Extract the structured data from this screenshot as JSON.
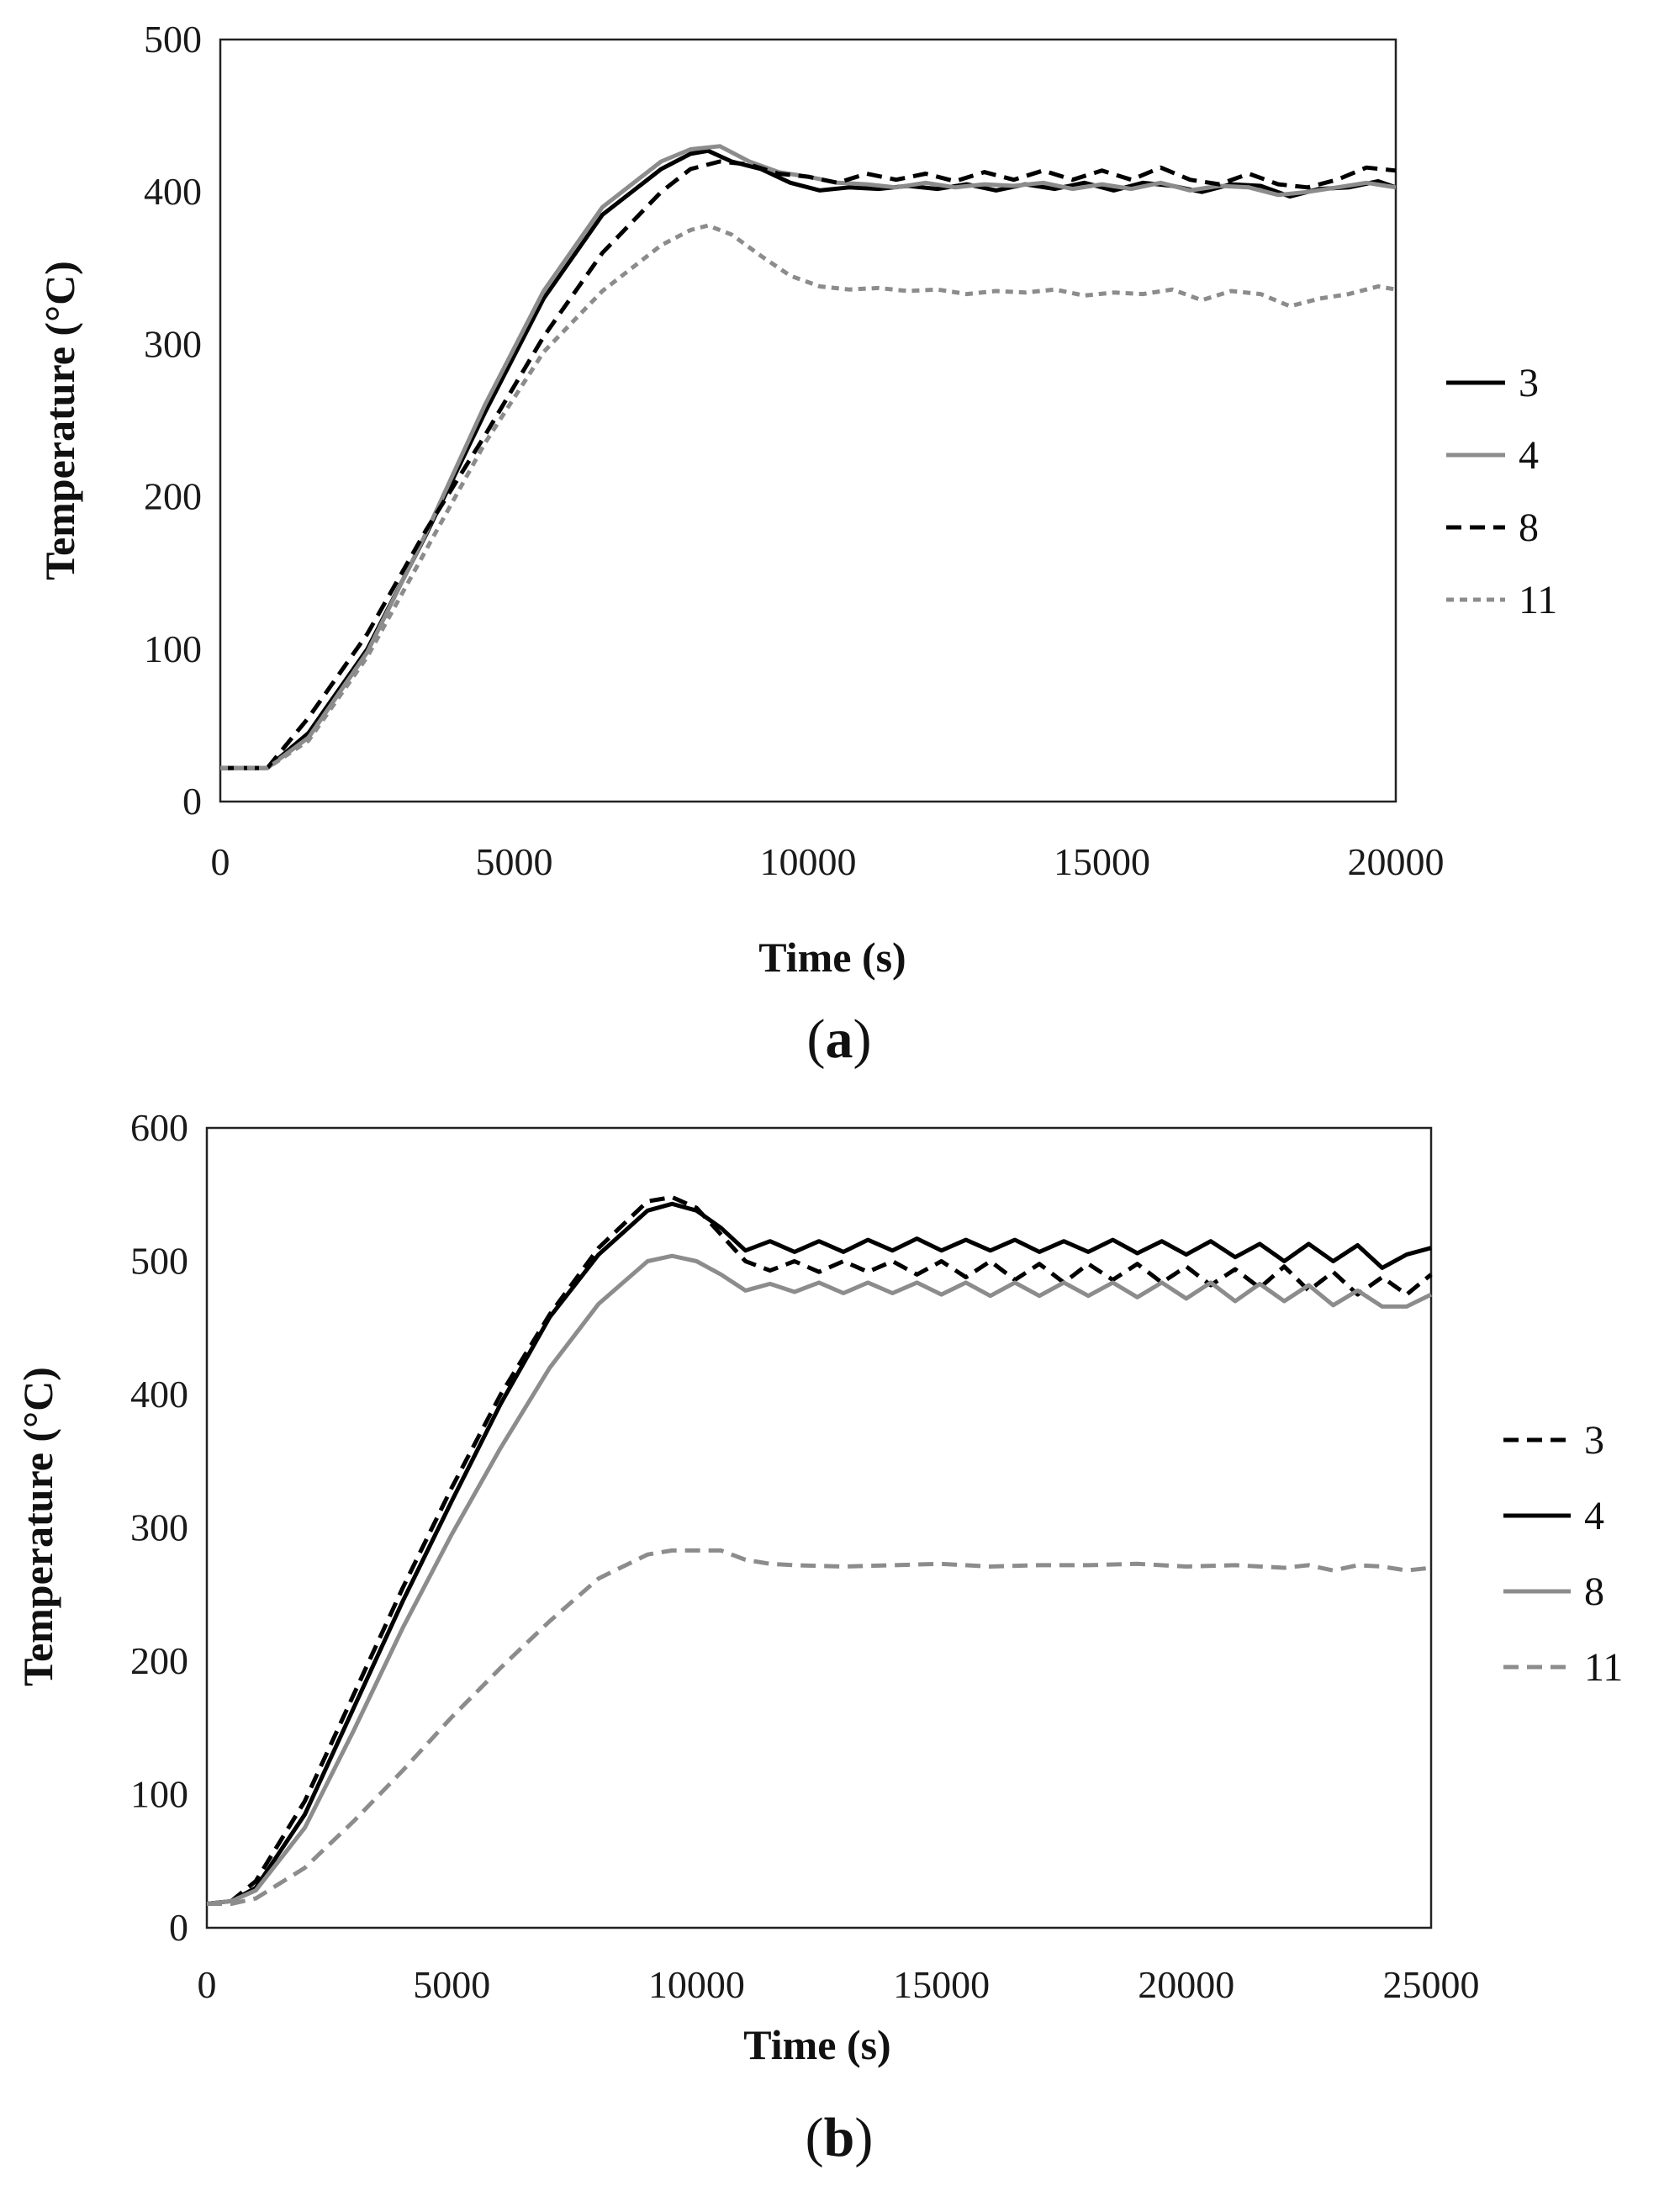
{
  "chart_data": [
    {
      "type": "line",
      "panel_label": "a",
      "xlabel": "Time (s)",
      "ylabel": "Temperature (°C)",
      "xlim": [
        0,
        20000
      ],
      "ylim": [
        0,
        500
      ],
      "xticks": [
        0,
        5000,
        10000,
        15000,
        20000
      ],
      "yticks": [
        0,
        100,
        200,
        300,
        400,
        500
      ],
      "legend_position": "right",
      "series": [
        {
          "name": "3",
          "color": "#000000",
          "dash": "solid",
          "x": [
            0,
            800,
            1500,
            2500,
            3500,
            4500,
            5500,
            6500,
            7500,
            8000,
            8300,
            8700,
            9200,
            9700,
            10200,
            10700,
            11200,
            11700,
            12200,
            12700,
            13200,
            13700,
            14200,
            14700,
            15200,
            15700,
            16200,
            16700,
            17200,
            17700,
            18200,
            18700,
            19200,
            19700,
            20000
          ],
          "y": [
            22,
            22,
            45,
            100,
            175,
            255,
            330,
            385,
            415,
            425,
            427,
            420,
            415,
            406,
            401,
            403,
            402,
            404,
            402,
            405,
            401,
            405,
            402,
            406,
            401,
            406,
            404,
            400,
            405,
            404,
            397,
            402,
            403,
            407,
            403
          ]
        },
        {
          "name": "4",
          "color": "#8c8c8c",
          "dash": "solid",
          "x": [
            0,
            800,
            1500,
            2500,
            3500,
            4500,
            5500,
            6500,
            7500,
            8000,
            8500,
            9000,
            9500,
            10000,
            10500,
            11000,
            11500,
            12000,
            12500,
            13000,
            13500,
            14000,
            14500,
            15000,
            15500,
            16000,
            16500,
            17000,
            17500,
            18000,
            18500,
            19000,
            19500,
            20000
          ],
          "y": [
            22,
            22,
            42,
            98,
            176,
            260,
            335,
            390,
            420,
            428,
            430,
            420,
            413,
            410,
            406,
            405,
            403,
            406,
            403,
            405,
            404,
            406,
            402,
            405,
            402,
            406,
            401,
            404,
            403,
            398,
            400,
            403,
            406,
            403
          ]
        },
        {
          "name": "8",
          "color": "#000000",
          "dash": "dashed",
          "x": [
            0,
            800,
            1500,
            2500,
            3500,
            4500,
            5500,
            6500,
            7500,
            8000,
            8500,
            9000,
            9500,
            10000,
            10500,
            11000,
            11500,
            12000,
            12500,
            13000,
            13500,
            14000,
            14500,
            15000,
            15500,
            16000,
            16500,
            17000,
            17500,
            18000,
            18500,
            19000,
            19500,
            20000
          ],
          "y": [
            22,
            22,
            55,
            110,
            178,
            240,
            305,
            360,
            400,
            415,
            420,
            418,
            412,
            410,
            406,
            412,
            408,
            412,
            407,
            413,
            408,
            414,
            408,
            414,
            408,
            416,
            408,
            405,
            412,
            405,
            403,
            408,
            416,
            414
          ]
        },
        {
          "name": "11",
          "color": "#8c8c8c",
          "dash": "dotted",
          "x": [
            0,
            800,
            1500,
            2500,
            3500,
            4500,
            5500,
            6500,
            7500,
            8000,
            8300,
            8700,
            9200,
            9700,
            10200,
            10700,
            11200,
            11700,
            12200,
            12700,
            13200,
            13700,
            14200,
            14700,
            15200,
            15700,
            16200,
            16700,
            17200,
            17700,
            18200,
            18700,
            19200,
            19700,
            20000
          ],
          "y": [
            22,
            22,
            40,
            95,
            165,
            235,
            295,
            335,
            365,
            375,
            378,
            372,
            358,
            345,
            338,
            336,
            337,
            335,
            336,
            333,
            335,
            334,
            336,
            332,
            334,
            333,
            336,
            329,
            335,
            333,
            325,
            330,
            333,
            338,
            336
          ]
        }
      ]
    },
    {
      "type": "line",
      "panel_label": "b",
      "xlabel": "Time (s)",
      "ylabel": "Temperature (°C)",
      "xlim": [
        0,
        25000
      ],
      "ylim": [
        0,
        600
      ],
      "xticks": [
        0,
        5000,
        10000,
        15000,
        20000,
        25000
      ],
      "yticks": [
        0,
        100,
        200,
        300,
        400,
        500,
        600
      ],
      "legend_position": "right",
      "series": [
        {
          "name": "3",
          "color": "#000000",
          "dash": "dashed",
          "x": [
            0,
            500,
            1000,
            2000,
            3000,
            4000,
            5000,
            6000,
            7000,
            8000,
            9000,
            9500,
            10000,
            10500,
            11000,
            11500,
            12000,
            12500,
            13000,
            13500,
            14000,
            14500,
            15000,
            15500,
            16000,
            16500,
            17000,
            17500,
            18000,
            18500,
            19000,
            19500,
            20000,
            20500,
            21000,
            21500,
            22000,
            22500,
            23000,
            23500,
            24000,
            24500,
            25000
          ],
          "y": [
            18,
            20,
            35,
            95,
            175,
            255,
            330,
            400,
            460,
            510,
            545,
            548,
            540,
            520,
            500,
            493,
            500,
            492,
            500,
            492,
            500,
            490,
            500,
            488,
            500,
            486,
            498,
            484,
            498,
            486,
            498,
            484,
            496,
            482,
            494,
            480,
            496,
            478,
            492,
            475,
            488,
            475,
            490
          ]
        },
        {
          "name": "4",
          "color": "#000000",
          "dash": "solid",
          "x": [
            0,
            500,
            1000,
            2000,
            3000,
            4000,
            5000,
            6000,
            7000,
            8000,
            9000,
            9500,
            10000,
            10500,
            11000,
            11500,
            12000,
            12500,
            13000,
            13500,
            14000,
            14500,
            15000,
            15500,
            16000,
            16500,
            17000,
            17500,
            18000,
            18500,
            19000,
            19500,
            20000,
            20500,
            21000,
            21500,
            22000,
            22500,
            23000,
            23500,
            24000,
            24500,
            25000
          ],
          "y": [
            18,
            20,
            30,
            85,
            165,
            245,
            320,
            393,
            458,
            505,
            538,
            543,
            538,
            525,
            508,
            515,
            507,
            515,
            507,
            516,
            508,
            517,
            508,
            516,
            508,
            516,
            507,
            515,
            507,
            516,
            506,
            515,
            505,
            515,
            503,
            513,
            500,
            513,
            500,
            512,
            495,
            505,
            510
          ]
        },
        {
          "name": "8",
          "color": "#8c8c8c",
          "dash": "solid",
          "x": [
            0,
            500,
            1000,
            2000,
            3000,
            4000,
            5000,
            6000,
            7000,
            8000,
            9000,
            9500,
            10000,
            10500,
            11000,
            11500,
            12000,
            12500,
            13000,
            13500,
            14000,
            14500,
            15000,
            15500,
            16000,
            16500,
            17000,
            17500,
            18000,
            18500,
            19000,
            19500,
            20000,
            20500,
            21000,
            21500,
            22000,
            22500,
            23000,
            23500,
            24000,
            24500,
            25000
          ],
          "y": [
            18,
            20,
            28,
            75,
            148,
            225,
            295,
            360,
            420,
            468,
            500,
            504,
            500,
            490,
            478,
            483,
            477,
            484,
            476,
            484,
            476,
            484,
            475,
            484,
            474,
            484,
            474,
            484,
            474,
            484,
            473,
            484,
            472,
            484,
            470,
            483,
            470,
            482,
            467,
            478,
            466,
            466,
            475
          ]
        },
        {
          "name": "11",
          "color": "#8c8c8c",
          "dash": "dashed",
          "x": [
            0,
            500,
            1000,
            2000,
            3000,
            4000,
            5000,
            6000,
            7000,
            8000,
            9000,
            9500,
            10000,
            10500,
            11000,
            11500,
            12000,
            13000,
            14000,
            15000,
            16000,
            17000,
            18000,
            19000,
            20000,
            21000,
            22000,
            22500,
            23000,
            23500,
            24000,
            24500,
            25000
          ],
          "y": [
            18,
            18,
            22,
            45,
            80,
            118,
            158,
            195,
            230,
            262,
            280,
            283,
            283,
            283,
            276,
            273,
            272,
            271,
            272,
            273,
            271,
            272,
            272,
            273,
            271,
            272,
            270,
            272,
            268,
            272,
            271,
            268,
            270
          ]
        }
      ]
    }
  ]
}
